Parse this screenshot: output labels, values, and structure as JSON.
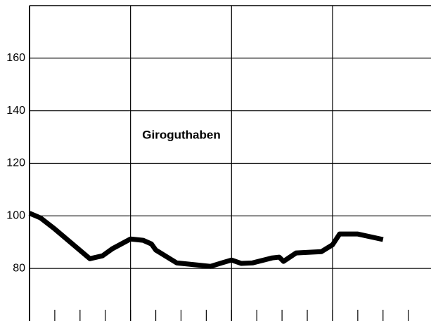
{
  "chart_data": {
    "type": "line",
    "annotation": "Giroguthaben",
    "x": [
      0,
      0.44,
      1,
      2.39,
      2.89,
      3.28,
      4,
      4.5,
      4.83,
      5,
      5.83,
      7.17,
      7.61,
      8,
      8.39,
      8.83,
      9.61,
      9.89,
      10.06,
      10.56,
      11.56,
      12,
      12.28,
      13,
      14
    ],
    "series": [
      {
        "name": "Giroguthaben",
        "color": "#000000",
        "values": [
          101,
          99.2,
          95,
          83.7,
          84.8,
          87.5,
          91.2,
          90.7,
          89.3,
          87,
          82.1,
          80.8,
          82.1,
          83.2,
          81.9,
          82.1,
          84,
          84.3,
          82.7,
          85.9,
          86.4,
          89,
          93.1,
          93.1,
          91
        ]
      }
    ],
    "xlim": [
      0,
      15.9
    ],
    "xticks": [
      1,
      2,
      3,
      4,
      5,
      6,
      7,
      8,
      9,
      10,
      11,
      12,
      13,
      14,
      15
    ],
    "xgrid": [
      4,
      8,
      12
    ],
    "xtick_labels": false,
    "ylim": [
      60,
      180
    ],
    "yticks": [
      80,
      100,
      120,
      140,
      160
    ],
    "grid": true
  }
}
